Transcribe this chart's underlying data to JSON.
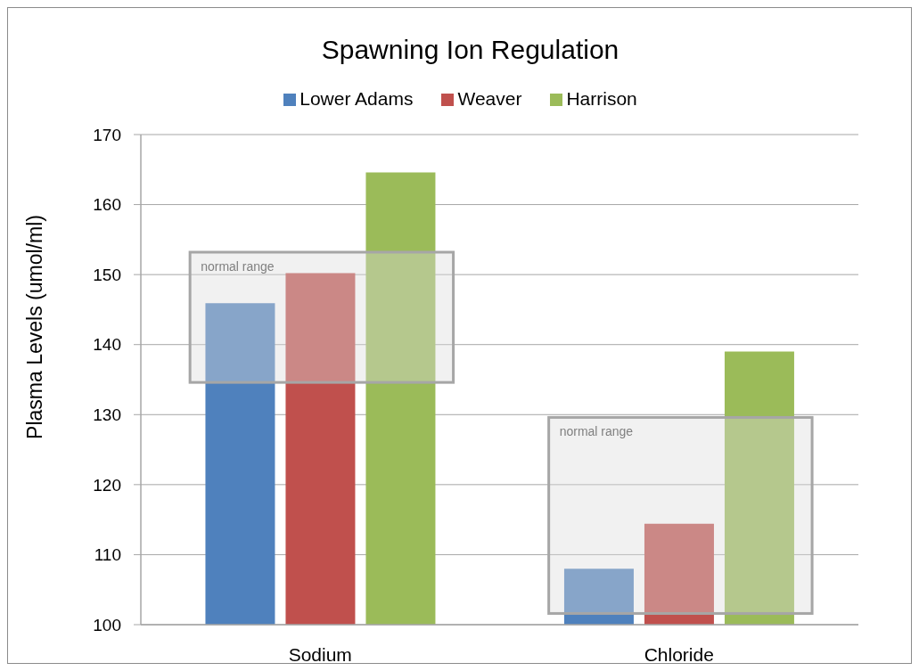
{
  "chart_data": {
    "type": "bar",
    "title": "Spawning Ion Regulation",
    "ylabel": "Plasma Levels (umol/ml)",
    "categories": [
      "Sodium",
      "Chloride"
    ],
    "series": [
      {
        "name": "Lower Adams",
        "color": "#4f81bd",
        "values": [
          145.9,
          108.0
        ]
      },
      {
        "name": "Weaver",
        "color": "#c0504d",
        "values": [
          150.2,
          114.4
        ]
      },
      {
        "name": "Harrison",
        "color": "#9bbb59",
        "values": [
          164.6,
          139.0
        ]
      }
    ],
    "ylim": [
      100,
      170
    ],
    "yticks": [
      100,
      110,
      120,
      130,
      140,
      150,
      160,
      170
    ],
    "grid": "y",
    "legend": "top",
    "bands": [
      {
        "axis": "y",
        "from": 134.6,
        "to": 153.2,
        "label": "normal range",
        "color": "#dbdbdb"
      },
      {
        "axis": "y",
        "from": 101.6,
        "to": 129.6,
        "label": "normal range",
        "color": "#dbdbdb"
      }
    ]
  }
}
